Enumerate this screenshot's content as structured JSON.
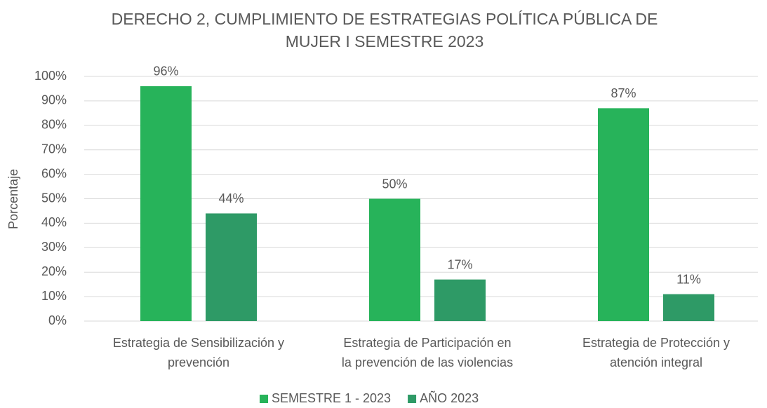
{
  "chart_data": {
    "type": "bar",
    "title": [
      "DERECHO 2, CUMPLIMIENTO DE ESTRATEGIAS POLÍTICA PÚBLICA DE",
      "MUJER I SEMESTRE 2023"
    ],
    "y_label": "Porcentaje",
    "categories": [
      [
        "Estrategia de Sensibilización y",
        "prevención"
      ],
      [
        "Estrategia de Participación en",
        "la prevención de las violencias"
      ],
      [
        "Estrategia de Protección y",
        "atención integral"
      ]
    ],
    "series": [
      {
        "name": "SEMESTRE 1 - 2023",
        "color": "#27b35a",
        "values": [
          96,
          50,
          87
        ],
        "value_labels": [
          "96%",
          "50%",
          "87%"
        ]
      },
      {
        "name": "AÑO 2023",
        "color": "#2e9a66",
        "values": [
          44,
          17,
          11
        ],
        "value_labels": [
          "44%",
          "17%",
          "11%"
        ]
      }
    ],
    "ylim": [
      0,
      100
    ],
    "yticks": [
      {
        "value": 0,
        "label": "0%"
      },
      {
        "value": 10,
        "label": "10%"
      },
      {
        "value": 20,
        "label": "20%"
      },
      {
        "value": 30,
        "label": "30%"
      },
      {
        "value": 40,
        "label": "40%"
      },
      {
        "value": 50,
        "label": "50%"
      },
      {
        "value": 60,
        "label": "60%"
      },
      {
        "value": 70,
        "label": "70%"
      },
      {
        "value": 80,
        "label": "80%"
      },
      {
        "value": 90,
        "label": "90%"
      },
      {
        "value": 100,
        "label": "100%"
      }
    ],
    "grid": true,
    "legend": "bottom"
  }
}
